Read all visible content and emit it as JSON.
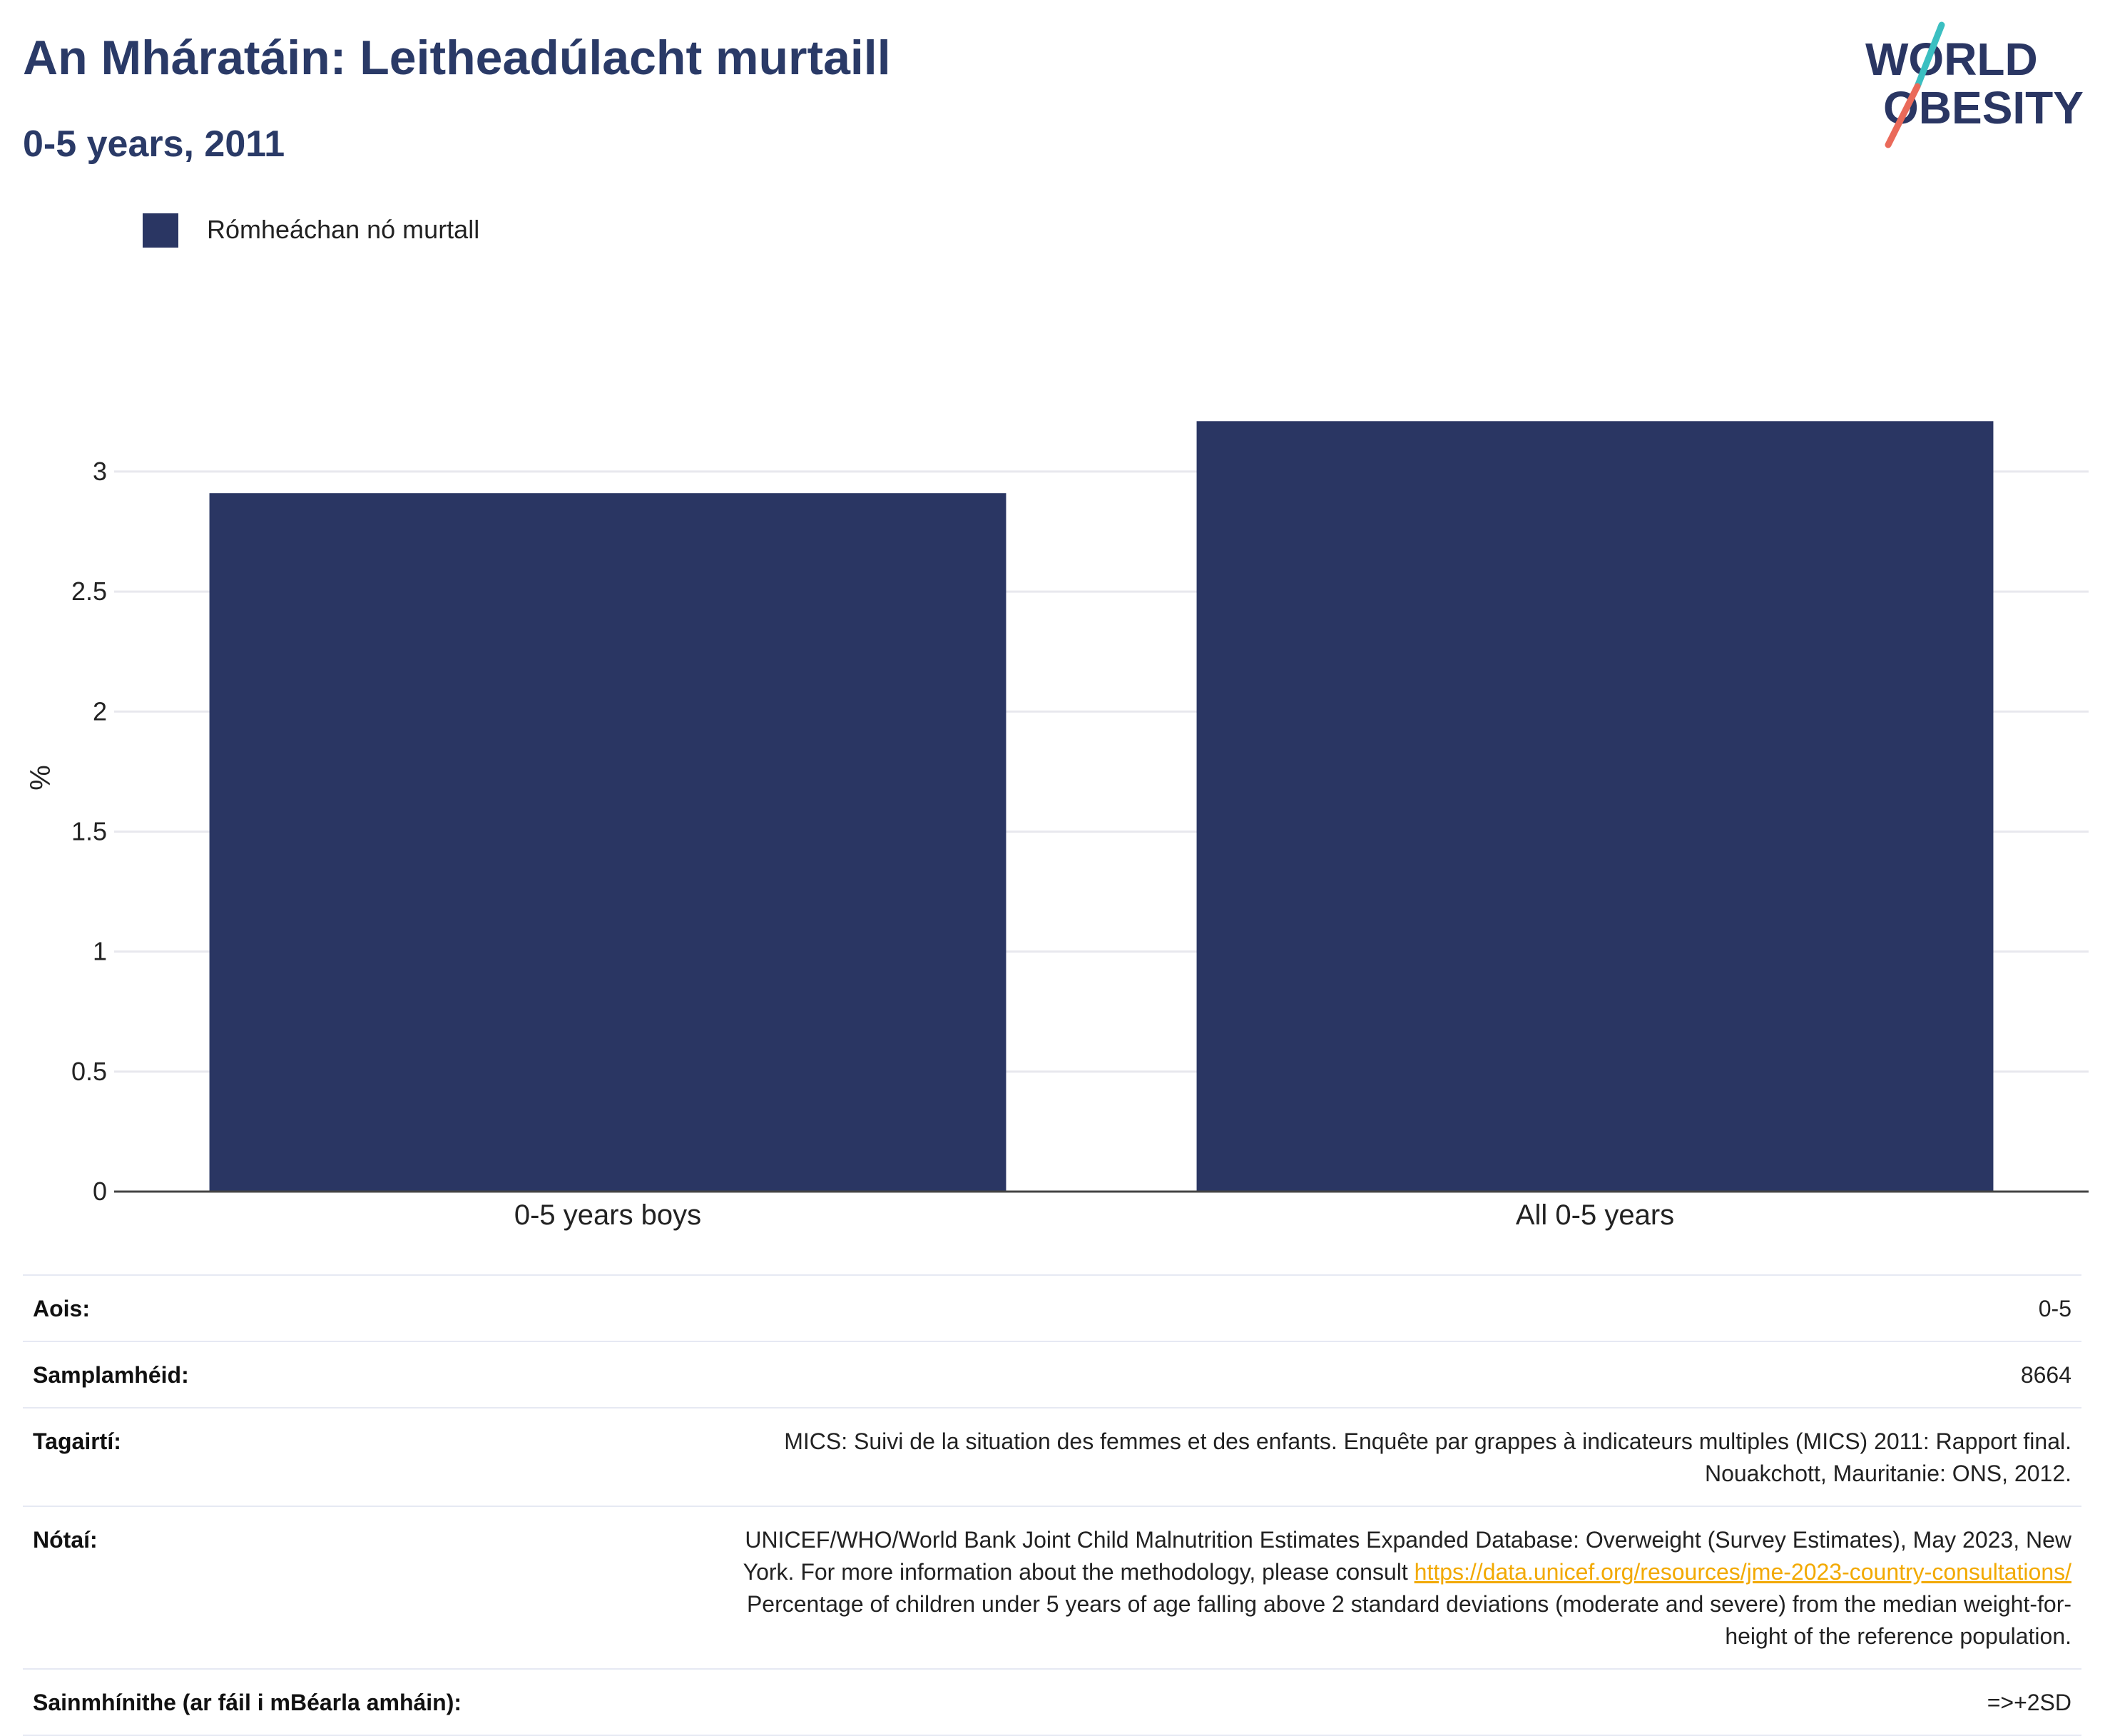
{
  "header": {
    "title": "An Mháratáin: Leitheadúlacht murtaill",
    "subtitle": "0-5 years, 2011"
  },
  "logo": {
    "line1": "WORLD",
    "line2": "OBESITY",
    "colors": {
      "text": "#2a3663",
      "slash_top": "#3bbfc1",
      "slash_bottom": "#ea6a5a"
    }
  },
  "legend": {
    "items": [
      {
        "label": "Rómheáchan nó murtall",
        "color": "#2a3663"
      }
    ],
    "placement": "top-left"
  },
  "chart_data": {
    "type": "bar",
    "title": "",
    "xlabel": "",
    "ylabel": "%",
    "categories": [
      "0-5 years boys",
      "All 0-5 years"
    ],
    "series": [
      {
        "name": "Rómheáchan nó murtall",
        "values": [
          2.91,
          3.21
        ],
        "color": "#2a3663"
      }
    ],
    "ylim": [
      0,
      3.3
    ],
    "yticks": [
      0,
      0.5,
      1,
      1.5,
      2,
      2.5,
      3
    ],
    "ytick_labels": [
      "0",
      "0.5",
      "1",
      "1.5",
      "2",
      "2.5",
      "3"
    ],
    "grid": true
  },
  "metadata": {
    "age": {
      "label": "Aois:",
      "value": "0-5"
    },
    "sample": {
      "label": "Samplamhéid:",
      "value": "8664"
    },
    "references": {
      "label": "Tagairtí:",
      "lines": [
        "MICS: Suivi de la situation des femmes et des enfants. Enquête par grappes à indicateurs multiples (MICS) 2011: Rapport final.",
        "Nouakchott, Mauritanie: ONS, 2012."
      ]
    },
    "notes": {
      "label": "Nótaí:",
      "line1": "UNICEF/WHO/World Bank Joint Child Malnutrition Estimates Expanded Database: Overweight (Survey Estimates), May 2023, New",
      "line2_prefix": "York. For more information about the methodology, please consult ",
      "link": "https://data.unicef.org/resources/jme-2023-country-consultations/",
      "line3": "Percentage of children under 5 years of age falling above 2 standard deviations (moderate and severe) from the median weight-for-",
      "line4": "height of the reference population."
    },
    "definitions": {
      "label": "Sainmhínithe (ar fáil i mBéarla amháin):",
      "value": "=>+2SD"
    }
  }
}
